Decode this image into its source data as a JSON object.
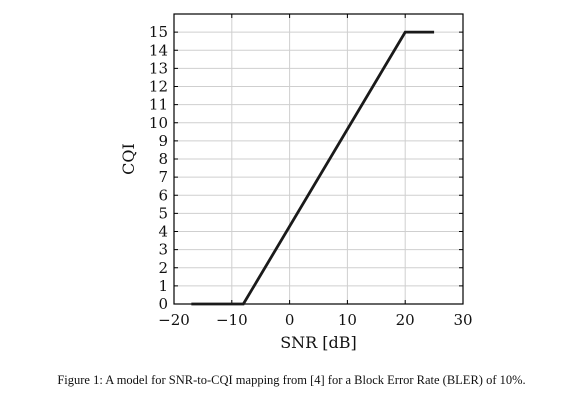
{
  "chart_data": {
    "type": "line",
    "xlabel": "SNR [dB]",
    "ylabel": "CQI",
    "xlim": [
      -20,
      30
    ],
    "ylim": [
      0,
      16
    ],
    "xticks": [
      -20,
      -10,
      0,
      10,
      20,
      30
    ],
    "yticks": [
      0,
      1,
      2,
      3,
      4,
      5,
      6,
      7,
      8,
      9,
      10,
      11,
      12,
      13,
      14,
      15
    ],
    "xtick_labels": [
      "−20",
      "−10",
      "0",
      "10",
      "20",
      "30"
    ],
    "ytick_labels": [
      "0",
      "1",
      "2",
      "3",
      "4",
      "5",
      "6",
      "7",
      "8",
      "9",
      "10",
      "11",
      "12",
      "13",
      "14",
      "15"
    ],
    "grid": true,
    "series": [
      {
        "x": [
          -17,
          -8,
          20,
          25
        ],
        "y": [
          0,
          0,
          15,
          15
        ],
        "color": "#1a1a1a"
      }
    ]
  },
  "caption": "Figure 1: A model for SNR-to-CQI mapping from [4] for a Block Error Rate (BLER) of 10%."
}
